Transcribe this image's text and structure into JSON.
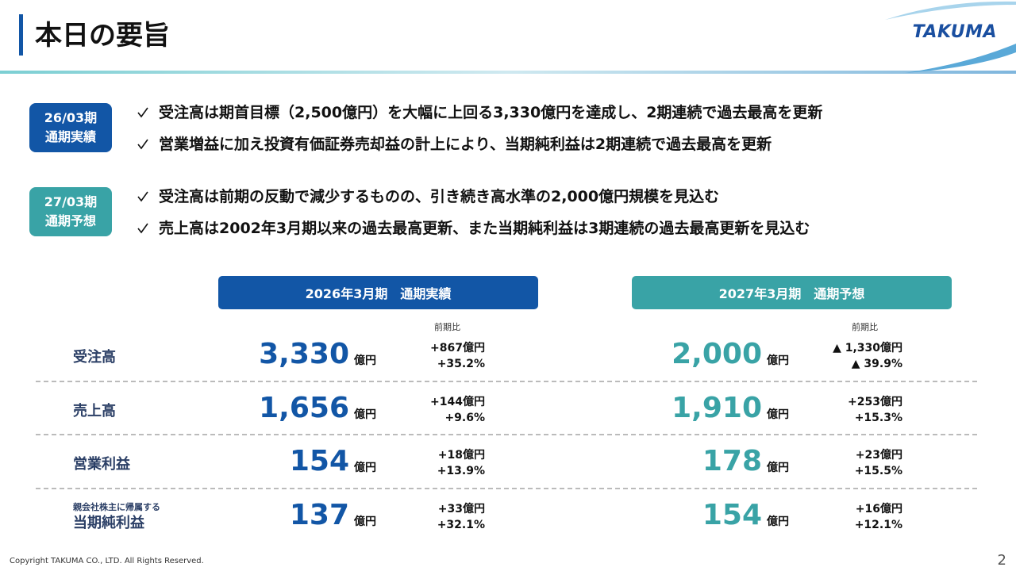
{
  "header": {
    "title": "本日の要旨",
    "logo": "TAKUMA"
  },
  "sections": [
    {
      "badge": [
        "26/03期",
        "通期実績"
      ],
      "color": "#1256a6",
      "bullets": [
        "受注高は期首目標（2,500億円）を大幅に上回る3,330億円を達成し、2期連続で過去最高を更新",
        "営業増益に加え投資有価証券売却益の計上により、当期純利益は2期連続で過去最高を更新"
      ]
    },
    {
      "badge": [
        "27/03期",
        "通期予想"
      ],
      "color": "#39a3a6",
      "bullets": [
        "受注高は前期の反動で減少するものの、引き続き高水準の2,000億円規模を見込む",
        "売上高は2002年3月期以来の過去最高更新、また当期純利益は3期連続の過去最高更新を見込む"
      ]
    }
  ],
  "table": {
    "columns": [
      {
        "title": "2026年3月期　通期実績",
        "compare_label": "前期比",
        "color": "#1256a6"
      },
      {
        "title": "2027年3月期　通期予想",
        "compare_label": "前期比",
        "color": "#39a3a6"
      }
    ],
    "unit": "億円",
    "rows": [
      {
        "label": "受注高",
        "cells": [
          {
            "value": "3,330",
            "diff": "+867億円",
            "pct": "+35.2%"
          },
          {
            "value": "2,000",
            "diff": "▲ 1,330億円",
            "pct": "▲ 39.9%"
          }
        ]
      },
      {
        "label": "売上高",
        "cells": [
          {
            "value": "1,656",
            "diff": "+144億円",
            "pct": "+9.6%"
          },
          {
            "value": "1,910",
            "diff": "+253億円",
            "pct": "+15.3%"
          }
        ]
      },
      {
        "label": "営業利益",
        "cells": [
          {
            "value": "154",
            "diff": "+18億円",
            "pct": "+13.9%"
          },
          {
            "value": "178",
            "diff": "+23億円",
            "pct": "+15.5%"
          }
        ]
      },
      {
        "label": "当期純利益",
        "sublabel": "親会社株主に帰属する",
        "cells": [
          {
            "value": "137",
            "diff": "+33億円",
            "pct": "+32.1%"
          },
          {
            "value": "154",
            "diff": "+16億円",
            "pct": "+12.1%"
          }
        ]
      }
    ]
  },
  "footer": {
    "copyright": "Copyright  TAKUMA CO., LTD.  All Rights Reserved.",
    "page": "2"
  }
}
